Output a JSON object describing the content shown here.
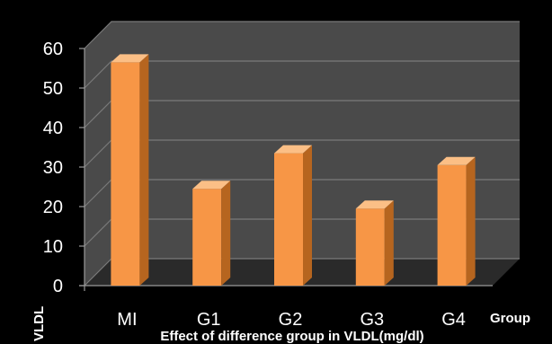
{
  "colors": {
    "background": "#000000",
    "bar_front": "#F79646",
    "bar_side": "#B6651F",
    "bar_top": "#FBBF86",
    "wall": "#4A4A4A",
    "floor": "#2A2A2A",
    "grid": "#7A7A7A",
    "text": "#FFFFFF"
  },
  "chart_data": {
    "type": "bar",
    "title": "Effect of difference group in VLDL(mg/dl)",
    "xlabel": "Group",
    "ylabel": "VLDL",
    "categories": [
      "MI",
      "G1",
      "G2",
      "G3",
      "G4"
    ],
    "values": [
      56.5,
      24.5,
      33.5,
      19.5,
      30.5
    ],
    "ylim": [
      0,
      60
    ],
    "yticks": [
      "0",
      "10",
      "20",
      "30",
      "40",
      "50",
      "60"
    ],
    "grid": true,
    "style": "3d"
  }
}
